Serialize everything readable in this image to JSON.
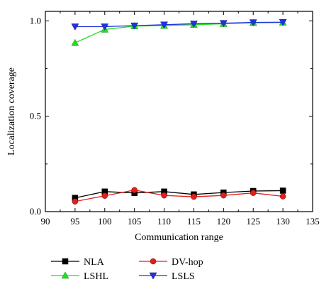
{
  "chart_data": {
    "type": "line",
    "xlabel": "Communication range",
    "ylabel": "Localization coverage",
    "xlim": [
      90,
      135
    ],
    "ylim": [
      0.0,
      1.05
    ],
    "xticks": [
      "90",
      "95",
      "100",
      "105",
      "110",
      "115",
      "120",
      "125",
      "130",
      "135"
    ],
    "yticks": [
      "0.0",
      "0.5",
      "1.0"
    ],
    "grid": false,
    "legend_position": "bottom",
    "x": [
      95,
      100,
      105,
      110,
      115,
      120,
      125,
      130
    ],
    "series": [
      {
        "name": "NLA",
        "color": "#000000",
        "marker": "square",
        "values": [
          0.072,
          0.105,
          0.098,
          0.105,
          0.09,
          0.1,
          0.108,
          0.11
        ]
      },
      {
        "name": "DV-hop",
        "color": "#e0201a",
        "marker": "circle",
        "values": [
          0.053,
          0.083,
          0.113,
          0.085,
          0.078,
          0.085,
          0.098,
          0.08
        ]
      },
      {
        "name": "LSHL",
        "color": "#22dd22",
        "marker": "triangle-up",
        "values": [
          0.885,
          0.955,
          0.973,
          0.975,
          0.98,
          0.985,
          0.99,
          0.992
        ]
      },
      {
        "name": "LSLS",
        "color": "#2233dd",
        "marker": "triangle-down",
        "values": [
          0.97,
          0.97,
          0.975,
          0.98,
          0.985,
          0.988,
          0.992,
          0.993
        ]
      }
    ]
  }
}
